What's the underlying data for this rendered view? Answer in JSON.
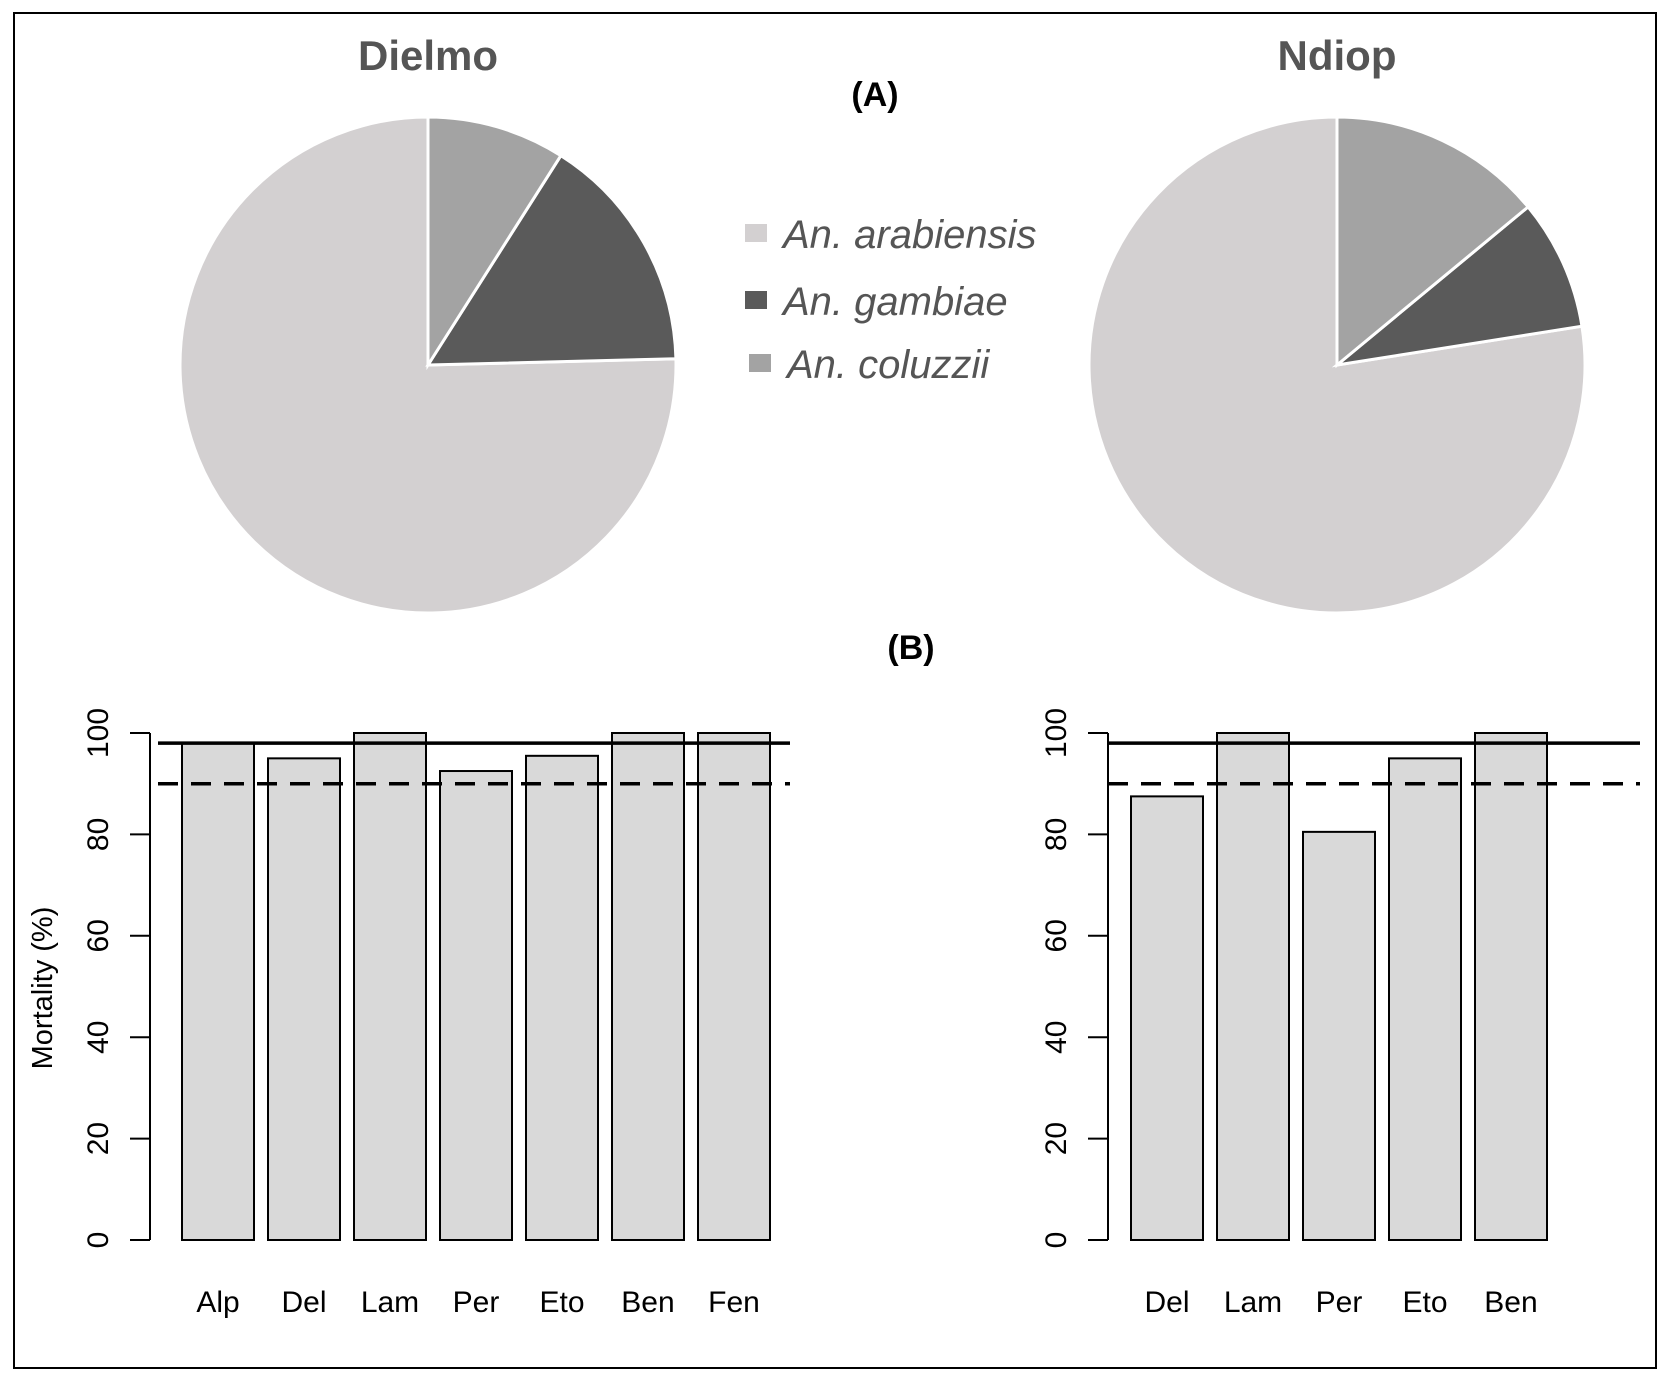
{
  "chart_data": [
    {
      "type": "pie",
      "title": "Dielmo",
      "panel_label": "(A)",
      "categories": [
        "An. arabiensis",
        "An. gambiae",
        "An. coluzzii"
      ],
      "values": [
        75.4,
        15.6,
        9.0
      ],
      "colors": [
        "#d3d0d1",
        "#5a5a5a",
        "#a3a3a3"
      ]
    },
    {
      "type": "pie",
      "title": "Ndiop",
      "categories": [
        "An. arabiensis",
        "An. gambiae",
        "An. coluzzii"
      ],
      "values": [
        77.5,
        8.5,
        14.0
      ],
      "colors": [
        "#d3d0d1",
        "#5a5a5a",
        "#a3a3a3"
      ]
    },
    {
      "type": "bar",
      "panel_label": "(B)",
      "ylabel": "Mortality (%)",
      "ylim": [
        0,
        100
      ],
      "yticks": [
        0,
        20,
        40,
        60,
        80,
        100
      ],
      "categories": [
        "Alp",
        "Del",
        "Lam",
        "Per",
        "Eto",
        "Ben",
        "Fen"
      ],
      "values": [
        98,
        95,
        100,
        92.5,
        95.5,
        100,
        100
      ],
      "reference_lines": [
        {
          "value": 98,
          "style": "solid"
        },
        {
          "value": 90,
          "style": "dashed"
        }
      ],
      "bar_color": "#d9d9d9"
    },
    {
      "type": "bar",
      "ylabel": "",
      "ylim": [
        0,
        100
      ],
      "yticks": [
        0,
        20,
        40,
        60,
        80,
        100
      ],
      "categories": [
        "Del",
        "Lam",
        "Per",
        "Eto",
        "Ben"
      ],
      "values": [
        87.5,
        100,
        80.5,
        95,
        100
      ],
      "reference_lines": [
        {
          "value": 98,
          "style": "solid"
        },
        {
          "value": 90,
          "style": "dashed"
        }
      ],
      "bar_color": "#d9d9d9"
    }
  ],
  "legend": {
    "entries": [
      {
        "label": "An. arabiensis",
        "color": "#d3d0d1"
      },
      {
        "label": "An. gambiae",
        "color": "#5a5a5a"
      },
      {
        "label": "An. coluzzii",
        "color": "#a3a3a3"
      }
    ]
  }
}
